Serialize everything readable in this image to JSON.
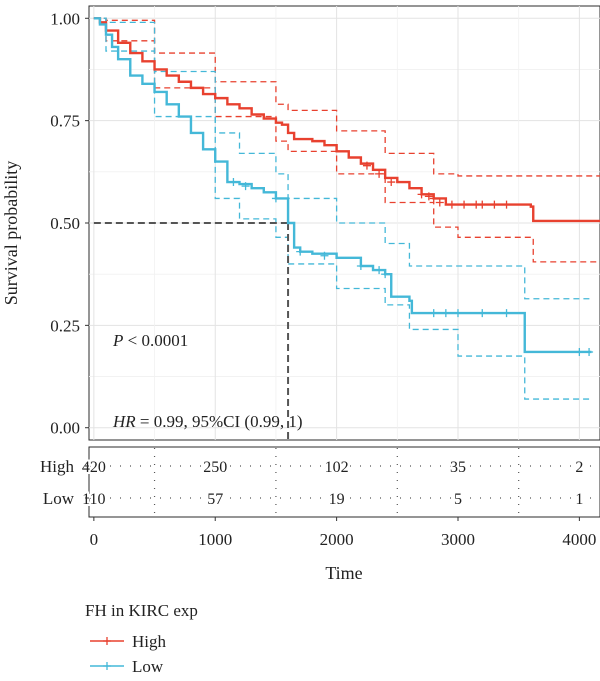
{
  "chart_data": {
    "type": "line",
    "subtype": "kaplan-meier",
    "xlabel": "Time",
    "ylabel": "Survival probability",
    "xlim": [
      -40,
      4170
    ],
    "ylim": [
      -0.03,
      1.03
    ],
    "x_ticks": [
      0,
      1000,
      2000,
      3000,
      4000
    ],
    "x_tick_labels": [
      "0",
      "1000",
      "2000",
      "3000",
      "4000"
    ],
    "y_ticks": [
      0,
      0.25,
      0.5,
      0.75,
      1
    ],
    "y_tick_labels": [
      "0.00",
      "0.25",
      "0.50",
      "0.75",
      "1.00"
    ],
    "grid": true,
    "legend_title": "FH in KIRC exp",
    "legend_position": "bottom-left",
    "annotations": {
      "p_value_prefix": "P",
      "p_value_rest": " < 0.0001",
      "hr_prefix": "HR",
      "hr_rest": " = 0.99, 95%CI (0.99, 1)"
    },
    "median_survival_reference": {
      "y": 0.5,
      "x": 1600
    },
    "series": [
      {
        "name": "High",
        "color": "#e8412f",
        "x": [
          0,
          50,
          100,
          200,
          300,
          400,
          500,
          600,
          700,
          800,
          900,
          1000,
          1100,
          1200,
          1300,
          1400,
          1500,
          1550,
          1600,
          1650,
          1700,
          1800,
          1900,
          2000,
          2100,
          2200,
          2300,
          2400,
          2500,
          2600,
          2700,
          2800,
          2900,
          3000,
          3100,
          3200,
          3300,
          3400,
          3500,
          3600,
          3620,
          3700,
          3800,
          3900,
          4000,
          4100,
          4170
        ],
        "y": [
          1.0,
          0.99,
          0.97,
          0.94,
          0.915,
          0.895,
          0.875,
          0.86,
          0.845,
          0.83,
          0.815,
          0.805,
          0.79,
          0.78,
          0.765,
          0.755,
          0.745,
          0.74,
          0.72,
          0.705,
          0.705,
          0.7,
          0.69,
          0.675,
          0.66,
          0.645,
          0.63,
          0.61,
          0.6,
          0.585,
          0.57,
          0.56,
          0.545,
          0.545,
          0.545,
          0.545,
          0.545,
          0.545,
          0.545,
          0.54,
          0.505,
          0.505,
          0.505,
          0.505,
          0.505,
          0.505,
          0.505
        ],
        "ci_upper_x": [
          0,
          100,
          500,
          1000,
          1500,
          1600,
          2000,
          2400,
          2800,
          3000,
          3500,
          3620,
          4170
        ],
        "ci_upper_y": [
          1.0,
          0.995,
          0.915,
          0.845,
          0.79,
          0.775,
          0.725,
          0.67,
          0.62,
          0.615,
          0.615,
          0.615,
          0.615
        ],
        "ci_lower_x": [
          0,
          100,
          500,
          1000,
          1500,
          1600,
          2000,
          2400,
          2800,
          3000,
          3500,
          3620,
          4170
        ],
        "ci_lower_y": [
          1.0,
          0.945,
          0.83,
          0.76,
          0.7,
          0.675,
          0.62,
          0.55,
          0.49,
          0.465,
          0.465,
          0.405,
          0.405
        ],
        "censor_x": [
          2250,
          2350,
          2450,
          2700,
          2760,
          2800,
          2850,
          2950,
          3050,
          3150,
          3200,
          3300,
          3400
        ],
        "censor_y": [
          0.64,
          0.62,
          0.6,
          0.57,
          0.565,
          0.56,
          0.55,
          0.545,
          0.545,
          0.545,
          0.545,
          0.545,
          0.545
        ]
      },
      {
        "name": "Low",
        "color": "#44b8d8",
        "x": [
          0,
          50,
          100,
          150,
          200,
          300,
          400,
          500,
          600,
          700,
          800,
          900,
          1000,
          1100,
          1200,
          1300,
          1400,
          1500,
          1600,
          1650,
          1700,
          1800,
          2000,
          2200,
          2300,
          2400,
          2450,
          2600,
          2620,
          2700,
          2800,
          3000,
          3200,
          3400,
          3500,
          3550,
          3600,
          3800,
          4000,
          4100
        ],
        "y": [
          1.0,
          0.985,
          0.96,
          0.93,
          0.9,
          0.86,
          0.84,
          0.82,
          0.79,
          0.76,
          0.72,
          0.68,
          0.65,
          0.6,
          0.595,
          0.585,
          0.575,
          0.56,
          0.5,
          0.44,
          0.43,
          0.425,
          0.415,
          0.395,
          0.385,
          0.375,
          0.32,
          0.31,
          0.28,
          0.28,
          0.28,
          0.28,
          0.28,
          0.28,
          0.28,
          0.185,
          0.185,
          0.185,
          0.185,
          0.185
        ],
        "ci_upper_x": [
          0,
          100,
          500,
          1000,
          1200,
          1500,
          1600,
          2000,
          2400,
          2600,
          3000,
          3500,
          3550,
          4100
        ],
        "ci_upper_y": [
          1.0,
          0.99,
          0.87,
          0.72,
          0.67,
          0.62,
          0.56,
          0.5,
          0.45,
          0.395,
          0.395,
          0.395,
          0.315,
          0.315
        ],
        "ci_lower_x": [
          0,
          100,
          500,
          1000,
          1200,
          1500,
          1600,
          2000,
          2400,
          2600,
          3000,
          3500,
          3550,
          4100
        ],
        "ci_lower_y": [
          1.0,
          0.92,
          0.76,
          0.56,
          0.51,
          0.465,
          0.4,
          0.34,
          0.3,
          0.24,
          0.175,
          0.175,
          0.07,
          0.07
        ],
        "censor_x": [
          1150,
          1250,
          1500,
          1700,
          1900,
          2200,
          2350,
          2400,
          2800,
          2900,
          3000,
          3200,
          3400,
          4000,
          4080
        ],
        "censor_y": [
          0.6,
          0.59,
          0.56,
          0.43,
          0.42,
          0.395,
          0.385,
          0.375,
          0.28,
          0.28,
          0.28,
          0.28,
          0.28,
          0.185,
          0.185
        ]
      }
    ],
    "risk_table": {
      "rows": [
        "High",
        "Low"
      ],
      "times": [
        0,
        1000,
        2000,
        3000,
        4000
      ],
      "values": [
        [
          "420",
          "250",
          "102",
          "35",
          "2"
        ],
        [
          "110",
          "57",
          "19",
          "5",
          "1"
        ]
      ]
    }
  }
}
